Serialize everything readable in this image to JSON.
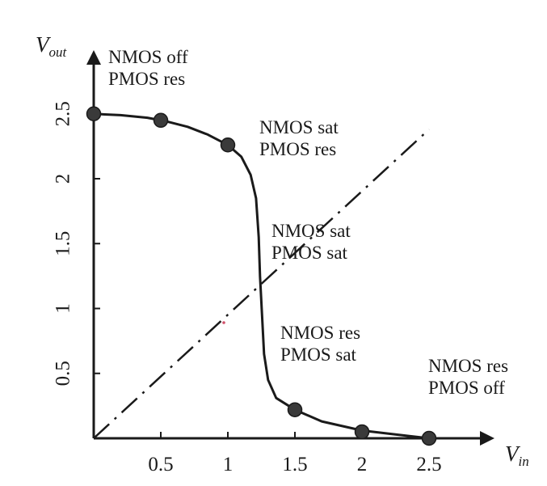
{
  "chart_data": {
    "type": "line",
    "title": "",
    "xlabel": {
      "main": "V",
      "sub": "in"
    },
    "ylabel": {
      "main": "V",
      "sub": "out"
    },
    "xlim": [
      0,
      2.5
    ],
    "ylim": [
      0,
      2.5
    ],
    "x_ticks": [
      {
        "value": 0.5,
        "label": "0.5"
      },
      {
        "value": 1,
        "label": "1"
      },
      {
        "value": 1.5,
        "label": "1.5"
      },
      {
        "value": 2,
        "label": "2"
      },
      {
        "value": 2.5,
        "label": "2.5"
      }
    ],
    "y_ticks": [
      {
        "value": 0.5,
        "label": "0.5"
      },
      {
        "value": 1,
        "label": "1"
      },
      {
        "value": 1.5,
        "label": "1.5"
      },
      {
        "value": 2,
        "label": "2"
      },
      {
        "value": 2.5,
        "label": "2.5"
      }
    ],
    "series": [
      {
        "style": "solid",
        "color": "#1a1a1a",
        "curve": [
          [
            0,
            2.5
          ],
          [
            0.2,
            2.49
          ],
          [
            0.4,
            2.47
          ],
          [
            0.55,
            2.44
          ],
          [
            0.7,
            2.4
          ],
          [
            0.85,
            2.34
          ],
          [
            1.0,
            2.26
          ],
          [
            1.1,
            2.17
          ],
          [
            1.17,
            2.03
          ],
          [
            1.21,
            1.85
          ],
          [
            1.23,
            1.55
          ],
          [
            1.24,
            1.25
          ],
          [
            1.255,
            0.95
          ],
          [
            1.27,
            0.65
          ],
          [
            1.3,
            0.45
          ],
          [
            1.36,
            0.31
          ],
          [
            1.5,
            0.22
          ],
          [
            1.7,
            0.13
          ],
          [
            2.0,
            0.06
          ],
          [
            2.25,
            0.03
          ],
          [
            2.5,
            0.0
          ]
        ],
        "points": [
          {
            "x": 0,
            "y": 2.5
          },
          {
            "x": 0.5,
            "y": 2.45
          },
          {
            "x": 1.0,
            "y": 2.26
          },
          {
            "x": 1.5,
            "y": 0.22
          },
          {
            "x": 2.0,
            "y": 0.05
          },
          {
            "x": 2.5,
            "y": 0.0
          }
        ]
      },
      {
        "style": "dash-dot",
        "color": "#1a1a1a",
        "curve": [
          [
            0,
            0
          ],
          [
            2.5,
            2.38
          ]
        ]
      }
    ],
    "annotations": [
      {
        "lines": [
          "NMOS off",
          "PMOS res"
        ]
      },
      {
        "lines": [
          "NMOS sat",
          "PMOS res"
        ]
      },
      {
        "lines": [
          "NMOS sat",
          "PMOS sat"
        ]
      },
      {
        "lines": [
          "NMOS res",
          "PMOS sat"
        ]
      },
      {
        "lines": [
          "NMOS res",
          "PMOS off"
        ]
      }
    ],
    "grid": false,
    "legend": "none"
  }
}
